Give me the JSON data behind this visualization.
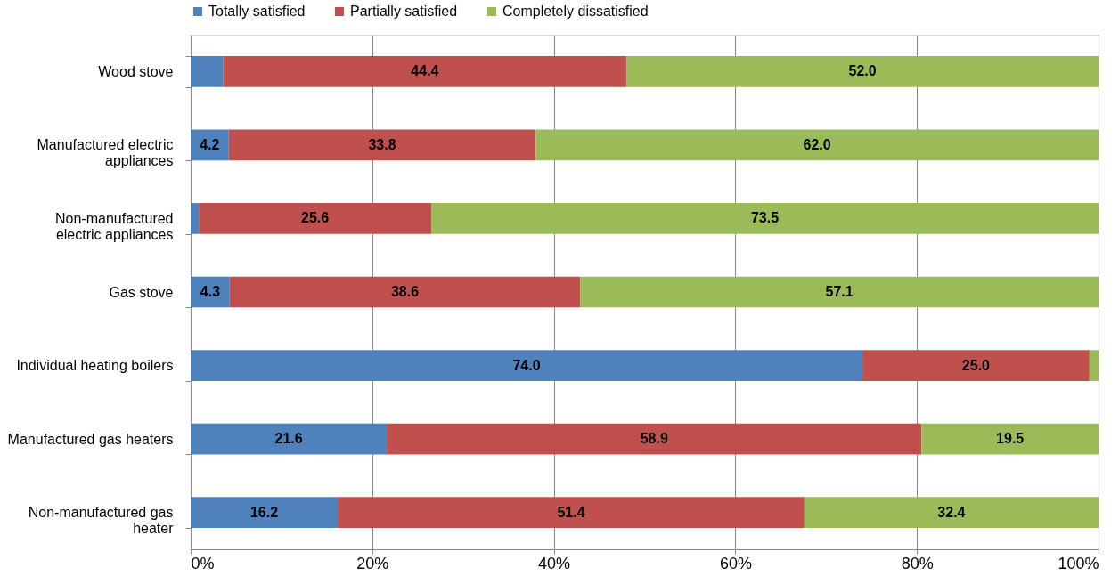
{
  "chart_data": {
    "type": "bar",
    "orientation": "horizontal",
    "stacked": true,
    "categories": [
      "Wood stove",
      "Manufactured electric appliances",
      "Non-manufactured electric appliances",
      "Gas stove",
      "Individual heating boilers",
      "Manufactured gas heaters",
      "Non-manufactured gas heater"
    ],
    "series": [
      {
        "name": "Totally satisfied",
        "color": "#4f81bd",
        "values": [
          3.6,
          4.2,
          0.9,
          4.3,
          74.0,
          21.6,
          16.2
        ],
        "value_labels": [
          null,
          "4.2",
          null,
          "4.3",
          "74.0",
          "21.6",
          "16.2"
        ]
      },
      {
        "name": "Partially satisfied",
        "color": "#c0504d",
        "values": [
          44.4,
          33.8,
          25.6,
          38.6,
          25.0,
          58.9,
          51.4
        ],
        "value_labels": [
          "44.4",
          "33.8",
          "25.6",
          "38.6",
          "25.0",
          "58.9",
          "51.4"
        ]
      },
      {
        "name": "Completely dissatisfied",
        "color": "#9bbb59",
        "values": [
          52.0,
          62.0,
          73.5,
          57.1,
          1.0,
          19.5,
          32.4
        ],
        "value_labels": [
          "52.0",
          "62.0",
          "73.5",
          "57.1",
          null,
          "19.5",
          "32.4"
        ]
      }
    ],
    "xlim": [
      0,
      100
    ],
    "xticks": [
      {
        "value": 0,
        "label": "0%"
      },
      {
        "value": 20,
        "label": "20%"
      },
      {
        "value": 40,
        "label": "40%"
      },
      {
        "value": 60,
        "label": "60%"
      },
      {
        "value": 80,
        "label": "80%"
      },
      {
        "value": 100,
        "label": "100%"
      }
    ],
    "grid": "x",
    "legend": "top"
  }
}
